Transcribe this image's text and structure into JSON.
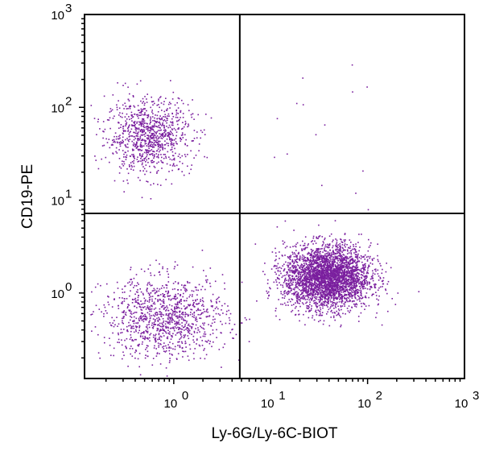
{
  "chart_data": {
    "type": "scatter",
    "title": "",
    "xlabel": "Ly-6G/Ly-6C-BIOT",
    "ylabel": "CD19-PE",
    "xscale": "log",
    "yscale": "log",
    "xlim": [
      0.12,
      1000
    ],
    "ylim": [
      0.12,
      1000
    ],
    "grid": false,
    "point_color": "#7a1f9e",
    "quadrant_gate": {
      "x": 4.8,
      "y": 7.2
    },
    "x_ticks": [
      {
        "value": 1,
        "base": "10",
        "exp": "0"
      },
      {
        "value": 10,
        "base": "10",
        "exp": "1"
      },
      {
        "value": 100,
        "base": "10",
        "exp": "2"
      },
      {
        "value": 1000,
        "base": "10",
        "exp": "3"
      }
    ],
    "y_ticks": [
      {
        "value": 1,
        "base": "10",
        "exp": "0"
      },
      {
        "value": 10,
        "base": "10",
        "exp": "1"
      },
      {
        "value": 100,
        "base": "10",
        "exp": "2"
      },
      {
        "value": 1000,
        "base": "10",
        "exp": "3"
      }
    ],
    "populations": [
      {
        "region": "upper-left",
        "count": 950,
        "center_x": 0.55,
        "center_y": 50,
        "spread_x": 0.22,
        "spread_y": 0.2
      },
      {
        "region": "lower-left",
        "count": 1100,
        "center_x": 0.8,
        "center_y": 0.55,
        "spread_x": 0.32,
        "spread_y": 0.22
      },
      {
        "region": "lower-right",
        "count": 3300,
        "center_x": 38,
        "center_y": 1.5,
        "spread_x": 0.22,
        "spread_y": 0.17
      },
      {
        "region": "upper-right",
        "count": 14,
        "center_x": 30,
        "center_y": 60,
        "spread_x": 0.35,
        "spread_y": 0.35
      }
    ]
  }
}
